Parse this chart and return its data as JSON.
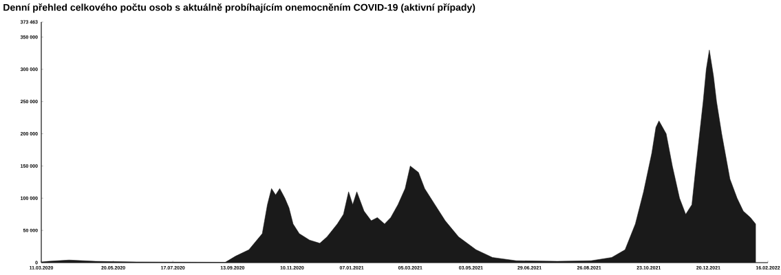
{
  "chart_data": {
    "type": "area",
    "title": "Denní přehled celkového počtu osob s aktuálně probíhajícím onemocněním COVID-19 (aktivní případy)",
    "x": [
      "2020-03-11",
      "2020-03-18",
      "2020-04-07",
      "2020-05-03",
      "2020-06-12",
      "2020-09-06",
      "2020-09-16",
      "2020-09-29",
      "2020-10-12",
      "2020-10-17",
      "2020-10-21",
      "2020-10-25",
      "2020-10-29",
      "2020-11-03",
      "2020-11-07",
      "2020-11-11",
      "2020-11-17",
      "2020-11-27",
      "2020-12-07",
      "2020-12-14",
      "2020-12-24",
      "2020-12-30",
      "2021-01-04",
      "2021-01-08",
      "2021-01-12",
      "2021-01-19",
      "2021-01-26",
      "2021-02-01",
      "2021-02-08",
      "2021-02-14",
      "2021-02-21",
      "2021-02-28",
      "2021-03-05",
      "2021-03-13",
      "2021-03-19",
      "2021-03-29",
      "2021-04-08",
      "2021-04-21",
      "2021-05-08",
      "2021-05-24",
      "2021-06-16",
      "2021-07-26",
      "2021-08-28",
      "2021-09-17",
      "2021-09-30",
      "2021-10-10",
      "2021-10-18",
      "2021-10-26",
      "2021-10-30",
      "2021-11-02",
      "2021-11-09",
      "2021-11-15",
      "2021-11-22",
      "2021-11-28",
      "2021-12-04",
      "2021-12-08",
      "2021-12-15",
      "2021-12-18",
      "2021-12-21",
      "2021-12-25",
      "2021-12-28",
      "2022-01-02",
      "2022-01-10",
      "2022-01-17",
      "2022-01-23",
      "2022-01-30",
      "2022-02-04"
    ],
    "values": [
      1000,
      2000,
      4000,
      2000,
      1000,
      500,
      10000,
      20000,
      45000,
      90000,
      115000,
      105000,
      115000,
      100000,
      85000,
      60000,
      45000,
      35000,
      30000,
      40000,
      60000,
      75000,
      110000,
      90000,
      110000,
      80000,
      65000,
      70000,
      60000,
      70000,
      90000,
      115000,
      150000,
      140000,
      115000,
      90000,
      65000,
      40000,
      20000,
      8000,
      3000,
      2000,
      3000,
      8000,
      20000,
      60000,
      110000,
      170000,
      210000,
      220000,
      200000,
      150000,
      100000,
      75000,
      90000,
      150000,
      250000,
      300000,
      330000,
      290000,
      250000,
      200000,
      130000,
      100000,
      80000,
      70000,
      60000
    ],
    "color": "#1a1a1a",
    "xlim": [
      "2020-03-11",
      "2022-02-16"
    ],
    "xticks": [
      {
        "value": "2020-03-11",
        "label": "11.03.2020"
      },
      {
        "value": "2020-05-20",
        "label": "20.05.2020"
      },
      {
        "value": "2020-07-17",
        "label": "17.07.2020"
      },
      {
        "value": "2020-09-13",
        "label": "13.09.2020"
      },
      {
        "value": "2020-11-10",
        "label": "10.11.2020"
      },
      {
        "value": "2021-01-07",
        "label": "07.01.2021"
      },
      {
        "value": "2021-03-05",
        "label": "05.03.2021"
      },
      {
        "value": "2021-05-03",
        "label": "03.05.2021"
      },
      {
        "value": "2021-06-29",
        "label": "29.06.2021"
      },
      {
        "value": "2021-08-26",
        "label": "26.08.2021"
      },
      {
        "value": "2021-10-23",
        "label": "23.10.2021"
      },
      {
        "value": "2021-12-20",
        "label": "20.12.2021"
      },
      {
        "value": "2022-02-16",
        "label": "16.02.2022"
      }
    ],
    "ylim": [
      0,
      373463
    ],
    "yticks": [
      0,
      {
        "value": 50000,
        "label": "50 000"
      },
      {
        "value": 100000,
        "label": "100 000"
      },
      {
        "value": 150000,
        "label": "150 000"
      },
      {
        "value": 200000,
        "label": "200 000"
      },
      {
        "value": 250000,
        "label": "250 000"
      },
      {
        "value": 300000,
        "label": "300 000"
      },
      {
        "value": 350000,
        "label": "350 000"
      },
      {
        "value": 373463,
        "label": "373 463"
      }
    ]
  }
}
